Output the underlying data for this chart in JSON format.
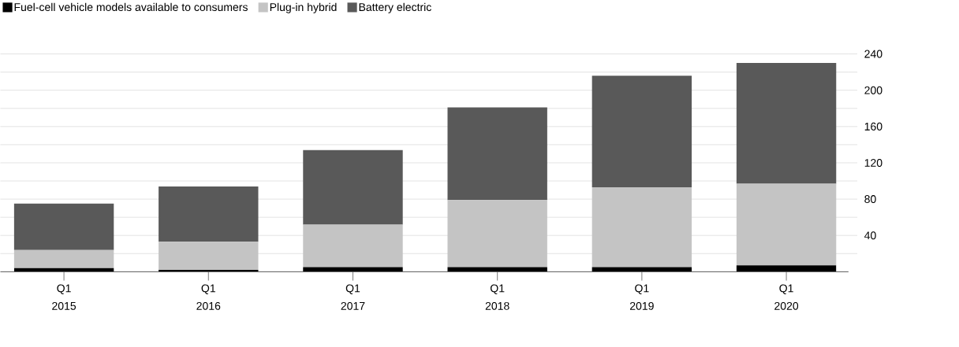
{
  "chart_data": {
    "type": "bar",
    "stacked": true,
    "categories": [
      "Q1 2015",
      "Q1 2016",
      "Q1 2017",
      "Q1 2018",
      "Q1 2019",
      "Q1 2020"
    ],
    "series": [
      {
        "name": "Fuel-cell vehicle models available to consumers",
        "color": "#000000",
        "values": [
          4,
          2,
          5,
          5,
          5,
          7
        ]
      },
      {
        "name": "Plug-in hybrid",
        "color": "#c4c4c4",
        "values": [
          20,
          31,
          47,
          74,
          88,
          90
        ]
      },
      {
        "name": "Battery electric",
        "color": "#595959",
        "values": [
          51,
          61,
          82,
          102,
          123,
          133
        ]
      }
    ],
    "ylim": [
      0,
      240
    ],
    "yticks": [
      {
        "value": 20,
        "label": null
      },
      40,
      {
        "value": 60,
        "label": null
      },
      80,
      {
        "value": 100,
        "label": null
      },
      120,
      {
        "value": 140,
        "label": null
      },
      160,
      {
        "value": 180,
        "label": null
      },
      200,
      {
        "value": 220,
        "label": null
      },
      240
    ],
    "grid": "y",
    "legend": "top left"
  }
}
